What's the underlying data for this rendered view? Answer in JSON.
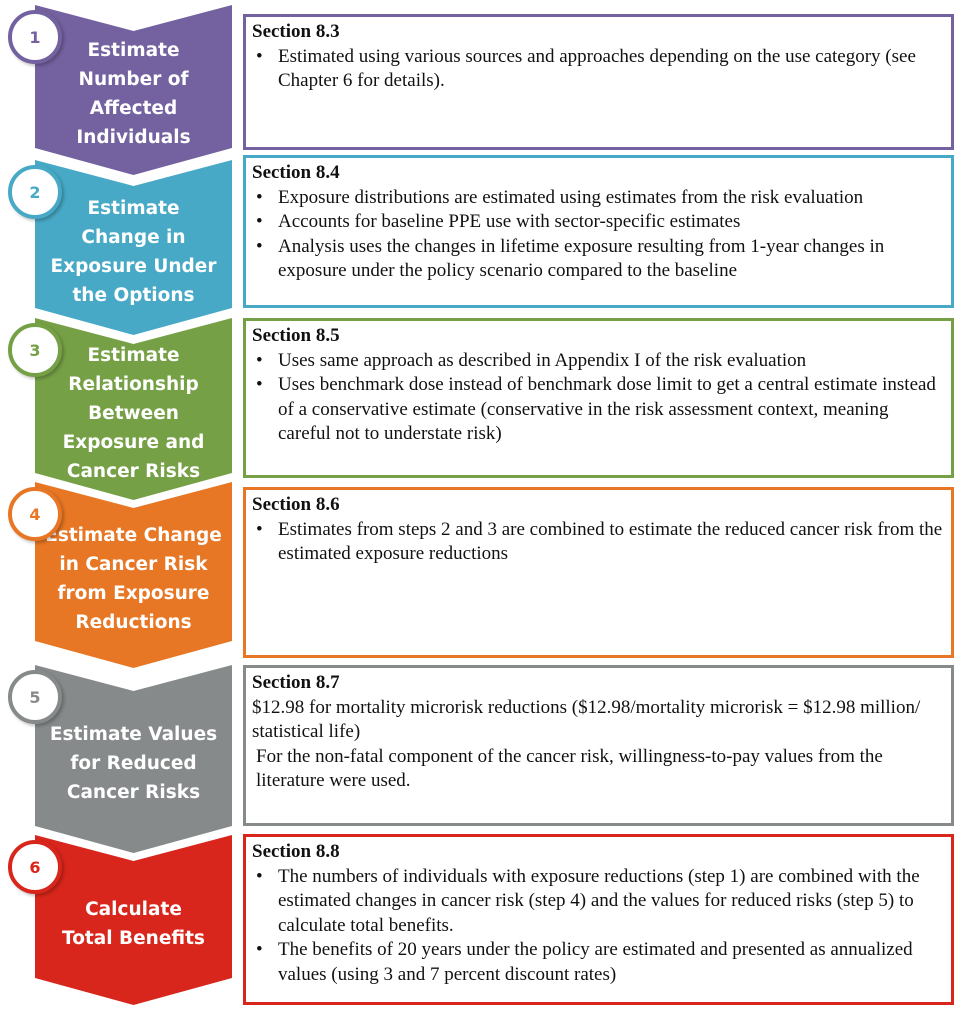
{
  "steps": [
    {
      "number": "1",
      "title": "Estimate Number of Affected Individuals",
      "color": "#7462a0",
      "section": "Section 8.3",
      "bullets": [
        "Estimated using various sources and approaches depending on the use category (see Chapter 6 for details)."
      ],
      "paragraphs": []
    },
    {
      "number": "2",
      "title": "Estimate Change in Exposure Under the Options",
      "color": "#47a9c6",
      "section": "Section 8.4",
      "bullets": [
        "Exposure distributions are estimated using estimates from the risk evaluation",
        "Accounts for baseline PPE use with sector-specific estimates",
        "Analysis uses the changes in lifetime exposure resulting from 1-year changes in exposure under the policy scenario compared to the baseline"
      ],
      "paragraphs": []
    },
    {
      "number": "3",
      "title": "Estimate Relationship Between Exposure and Cancer Risks",
      "color": "#76a046",
      "section": "Section 8.5",
      "bullets": [
        "Uses same approach as described in Appendix I of the risk evaluation",
        "Uses benchmark dose instead of benchmark dose limit to get a central estimate instead of a conservative estimate (conservative in the risk assessment context, meaning careful not to understate risk)"
      ],
      "paragraphs": []
    },
    {
      "number": "4",
      "title": "Estimate Change in Cancer Risk from Exposure Reductions",
      "color": "#e77724",
      "section": "Section 8.6",
      "bullets": [
        "Estimates from steps 2 and 3 are combined to estimate the reduced cancer risk from the estimated exposure reductions"
      ],
      "paragraphs": []
    },
    {
      "number": "5",
      "title": "Estimate Values for Reduced Cancer Risks",
      "color": "#878a8b",
      "section": "Section 8.7",
      "bullets": [],
      "paragraphs": [
        "$12.98 for mortality microrisk reductions ($12.98/mortality microrisk = $12.98 million/ statistical life)",
        "For the non-fatal component of the cancer risk, willingness-to-pay values from the literature were used."
      ]
    },
    {
      "number": "6",
      "title": "Calculate Total Benefits",
      "color": "#d9261c",
      "section": "Section 8.8",
      "bullets": [
        "The numbers of individuals with exposure reductions (step 1) are combined with the estimated changes in cancer risk (step 4) and the values for reduced risks (step 5) to calculate total benefits.",
        "The benefits of 20 years under the policy are estimated and presented as annualized values (using 3 and 7 percent discount rates)"
      ],
      "paragraphs": []
    }
  ]
}
